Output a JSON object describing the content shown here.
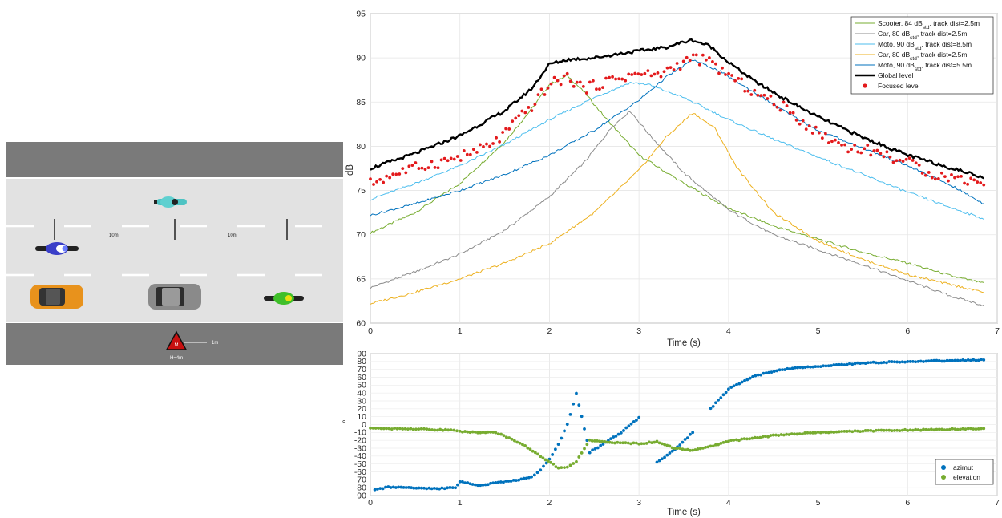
{
  "scene": {
    "distance_label_1": "10m",
    "distance_label_2": "10m",
    "mic_distance_label": "1m",
    "mic_height_label": "H=4m",
    "mic_marker": "M",
    "vehicles": [
      {
        "name": "scooter-teal",
        "icon": "scooter-icon",
        "color": "#4ec3c3"
      },
      {
        "name": "motorcycle-blue",
        "icon": "motorcycle-icon",
        "color": "#3a3fc8"
      },
      {
        "name": "car-orange",
        "icon": "car-icon",
        "color": "#e8921c"
      },
      {
        "name": "car-grey",
        "icon": "car-icon",
        "color": "#8a8a8a"
      },
      {
        "name": "motorcycle-green",
        "icon": "motorcycle-icon",
        "color": "#3fbf2a"
      }
    ],
    "colors": {
      "road": "#e2e2e2",
      "border": "#7a7a7a",
      "marking": "#ffffff",
      "mic": "#c81010"
    }
  },
  "top_chart": {
    "xlabel": "Time (s)",
    "ylabel": "dB",
    "xticks": [
      "0",
      "1",
      "2",
      "3",
      "4",
      "5",
      "6",
      "7"
    ],
    "yticks": [
      "60",
      "65",
      "70",
      "75",
      "80",
      "85",
      "90",
      "95"
    ],
    "legend": [
      {
        "pre": "Scooter, 84 dB",
        "sub": "std",
        "post": ", track dist=2.5m",
        "color": "#77ac30",
        "kind": "line"
      },
      {
        "pre": "Car, 80 dB",
        "sub": "std",
        "post": ", track dist=2.5m",
        "color": "#8c8c8c",
        "kind": "line"
      },
      {
        "pre": "Moto, 90 dB",
        "sub": "std",
        "post": ", track dist=8.5m",
        "color": "#4dbeee",
        "kind": "line"
      },
      {
        "pre": "Car, 80 dB",
        "sub": "std",
        "post": ", track dist=2.5m",
        "color": "#edb120",
        "kind": "line"
      },
      {
        "pre": "Moto, 90 dB",
        "sub": "std",
        "post": ", track dist=5.5m",
        "color": "#0072bd",
        "kind": "line"
      },
      {
        "pre": "Global level",
        "sub": "",
        "post": "",
        "color": "#000000",
        "kind": "thick"
      },
      {
        "pre": "Focused level",
        "sub": "",
        "post": "",
        "color": "#e31a1c",
        "kind": "dot"
      }
    ]
  },
  "bottom_chart": {
    "xlabel": "Time (s)",
    "ylabel": "°",
    "xticks": [
      "0",
      "1",
      "2",
      "3",
      "4",
      "5",
      "6",
      "7"
    ],
    "yticks": [
      "-90",
      "-80",
      "-70",
      "-60",
      "-50",
      "-40",
      "-30",
      "-20",
      "-10",
      "0",
      "10",
      "20",
      "30",
      "40",
      "50",
      "60",
      "70",
      "80",
      "90"
    ],
    "legend": [
      {
        "label": "azimut",
        "color": "#0072bd"
      },
      {
        "label": "elevation",
        "color": "#77ac30"
      }
    ]
  },
  "chart_data": [
    {
      "type": "line",
      "xlabel": "Time (s)",
      "ylabel": "dB",
      "xlim": [
        0,
        7
      ],
      "ylim": [
        60,
        95
      ],
      "grid": true,
      "legend_position": "top-right",
      "series": [
        {
          "name": "Scooter, 84 dBstd, track dist=2.5m",
          "color": "#77ac30",
          "x": [
            0,
            0.5,
            1,
            1.5,
            1.8,
            2,
            2.2,
            2.4,
            2.6,
            3,
            3.5,
            4,
            4.5,
            5,
            5.5,
            6,
            6.5,
            6.85
          ],
          "y": [
            70.2,
            72.5,
            75.8,
            80.5,
            84.2,
            87,
            88,
            86,
            83.5,
            79,
            75.8,
            73,
            71,
            69.5,
            68,
            66.8,
            65.3,
            64.5
          ]
        },
        {
          "name": "Car, 80 dBstd, track dist=2.5m",
          "color": "#8c8c8c",
          "x": [
            0,
            0.5,
            1,
            1.5,
            2,
            2.4,
            2.7,
            2.9,
            3.1,
            3.5,
            4,
            4.5,
            5,
            5.5,
            6,
            6.5,
            6.85
          ],
          "y": [
            64,
            65.8,
            67.8,
            70.5,
            74.3,
            78.3,
            82.2,
            84,
            81.5,
            77,
            72.8,
            70,
            68.3,
            66.6,
            64.8,
            63,
            62
          ]
        },
        {
          "name": "Moto, 90 dBstd, track dist=8.5m",
          "color": "#4dbeee",
          "x": [
            0,
            0.5,
            1,
            1.5,
            2,
            2.5,
            2.9,
            3.1,
            3.5,
            4,
            4.5,
            5,
            5.5,
            6,
            6.5,
            6.85
          ],
          "y": [
            74,
            75.8,
            77.8,
            80.2,
            83,
            85.5,
            87.2,
            87,
            85.5,
            83,
            80.8,
            78.8,
            76.8,
            74.8,
            73,
            71.8
          ]
        },
        {
          "name": "Car, 80 dBstd, track dist=2.5m",
          "color": "#edb120",
          "x": [
            0,
            0.5,
            1,
            1.5,
            2,
            2.5,
            3,
            3.3,
            3.6,
            3.85,
            4.1,
            4.5,
            5,
            5.5,
            6,
            6.5,
            6.85
          ],
          "y": [
            62.2,
            63.5,
            65,
            66.8,
            69,
            72.5,
            77.3,
            81,
            83.8,
            82,
            77.5,
            72.5,
            69.3,
            67.2,
            65.5,
            64.3,
            63.5
          ]
        },
        {
          "name": "Moto, 90 dBstd, track dist=5.5m",
          "color": "#0072bd",
          "x": [
            0,
            0.5,
            1,
            1.5,
            2,
            2.5,
            3,
            3.3,
            3.6,
            3.9,
            4.3,
            4.7,
            5,
            5.5,
            6,
            6.5,
            6.85
          ],
          "y": [
            72.2,
            73.5,
            75,
            76.8,
            79,
            81.8,
            85.2,
            87.8,
            89.8,
            88.5,
            86,
            83.5,
            81.8,
            79.8,
            77.8,
            75.5,
            73.5
          ]
        },
        {
          "name": "Global level",
          "color": "#000000",
          "x": [
            0,
            0.5,
            1,
            1.5,
            1.8,
            2,
            2.2,
            2.5,
            2.8,
            3,
            3.3,
            3.5,
            3.6,
            3.8,
            4,
            4.3,
            4.6,
            5,
            5.5,
            6,
            6.5,
            6.85
          ],
          "y": [
            77.5,
            79.2,
            81.2,
            84,
            86.5,
            89.3,
            89.8,
            90,
            90.5,
            90.8,
            91.2,
            91.8,
            92,
            91.3,
            89.5,
            87.3,
            85.5,
            83.3,
            81,
            79,
            77.5,
            76.5
          ]
        },
        {
          "name": "Focused level",
          "color": "#e31a1c",
          "markers": true,
          "x": [
            0,
            0.3,
            0.6,
            0.9,
            1.2,
            1.4,
            1.6,
            1.8,
            2,
            2.2,
            2.4,
            2.6,
            2.8,
            3,
            3.2,
            3.4,
            3.6,
            3.8,
            4,
            4.3,
            4.6,
            5,
            5.3,
            5.6,
            6,
            6.3,
            6.6,
            6.85
          ],
          "y": [
            75.8,
            77,
            77.8,
            78.5,
            79.5,
            80.5,
            82.5,
            84.5,
            87,
            87.8,
            86.5,
            87.2,
            87.8,
            88.2,
            88,
            89,
            90,
            89.5,
            88,
            86,
            84.5,
            81.5,
            80,
            79.5,
            78.2,
            76.8,
            76.3,
            76
          ]
        }
      ]
    },
    {
      "type": "scatter",
      "xlabel": "Time (s)",
      "ylabel": "°",
      "xlim": [
        0,
        7
      ],
      "ylim": [
        -90,
        90
      ],
      "grid": true,
      "legend_position": "bottom-right",
      "series": [
        {
          "name": "azimut",
          "color": "#0072bd",
          "x": [
            0.05,
            0.2,
            0.4,
            0.6,
            0.8,
            0.95,
            1.0,
            1.2,
            1.4,
            1.6,
            1.8,
            1.9,
            2.0,
            2.1,
            2.2,
            2.3,
            2.45,
            2.6,
            2.8,
            3.0,
            3.2,
            3.4,
            3.6,
            3.8,
            4.0,
            4.3,
            4.6,
            5.0,
            5.5,
            6.0,
            6.5,
            6.85
          ],
          "y": [
            -83,
            -79,
            -80,
            -81,
            -81,
            -80,
            -72,
            -77,
            -74,
            -71,
            -67,
            -58,
            -44,
            -25,
            0,
            40,
            -35,
            -25,
            -10,
            9,
            -48,
            -32,
            -10,
            20,
            45,
            62,
            70,
            74,
            78,
            80,
            81,
            82
          ]
        },
        {
          "name": "elevation",
          "color": "#77ac30",
          "x": [
            0,
            0.3,
            0.6,
            0.9,
            1.0,
            1.2,
            1.4,
            1.55,
            1.7,
            1.9,
            2.1,
            2.2,
            2.3,
            2.45,
            2.7,
            3.0,
            3.2,
            3.4,
            3.6,
            3.8,
            4.0,
            4.5,
            5.0,
            5.5,
            6.0,
            6.5,
            6.85
          ],
          "y": [
            -5,
            -5,
            -6,
            -7,
            -9,
            -10,
            -10,
            -17,
            -25,
            -40,
            -55,
            -54,
            -47,
            -20,
            -23,
            -24,
            -22,
            -30,
            -33,
            -28,
            -21,
            -14,
            -10,
            -8,
            -7,
            -6,
            -5
          ]
        }
      ]
    }
  ]
}
